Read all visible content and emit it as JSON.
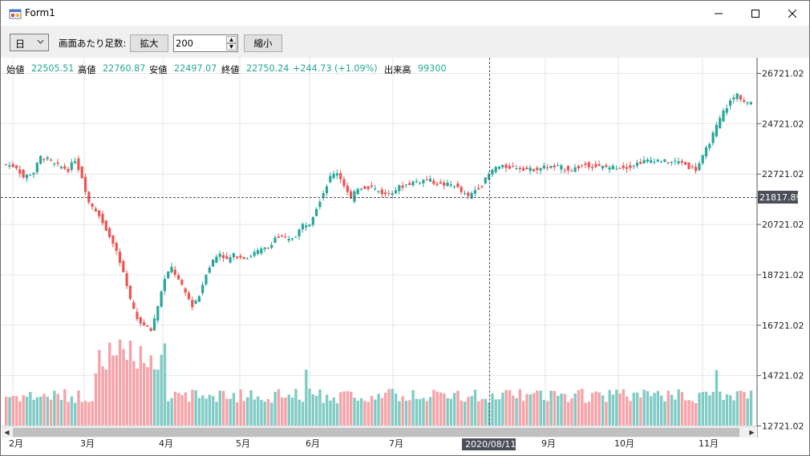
{
  "window": {
    "title": "Form1"
  },
  "toolbar": {
    "period_selected": "日",
    "bars_label": "画面あたり足数:",
    "zoom_in_label": "拡大",
    "bars_value": "200",
    "zoom_out_label": "縮小"
  },
  "ohlc": {
    "open_label": "始値",
    "open_value": "22505.51",
    "high_label": "高値",
    "high_value": "22760.87",
    "low_label": "安値",
    "low_value": "22497.07",
    "close_label": "終値",
    "close_value": "22750.24",
    "change_value": "+244.73",
    "change_pct": "(+1.09%)",
    "volume_label": "出来高",
    "volume_value": "99300"
  },
  "colors": {
    "up": "#26a69a",
    "down": "#ef5350",
    "up_vol": "#80cbc4",
    "down_vol": "#f5a3a8",
    "grid": "#e3e6ee",
    "label_bg": "#4a4f5a"
  },
  "chart_data": {
    "type": "candlestick",
    "y_ticks": [
      "26721.02",
      "24721.02",
      "22721.02",
      "20721.02",
      "18721.02",
      "16721.02",
      "14721.02",
      "12721.02"
    ],
    "y_range": [
      12721.02,
      26721.02
    ],
    "x_month_labels": [
      "2月",
      "3月",
      "4月",
      "5月",
      "6月",
      "7月",
      "9月",
      "10月",
      "11月"
    ],
    "crosshair": {
      "price_label": "21817.89",
      "date_label": "2020/08/11"
    },
    "path": [
      [
        0,
        23100
      ],
      [
        3,
        23000
      ],
      [
        5,
        22600
      ],
      [
        8,
        22800
      ],
      [
        10,
        23400
      ],
      [
        12,
        23300
      ],
      [
        14,
        23100
      ],
      [
        16,
        23000
      ],
      [
        18,
        22900
      ],
      [
        20,
        23300
      ],
      [
        22,
        22600
      ],
      [
        24,
        21600
      ],
      [
        26,
        21300
      ],
      [
        28,
        20800
      ],
      [
        30,
        20300
      ],
      [
        32,
        19600
      ],
      [
        34,
        18800
      ],
      [
        36,
        17700
      ],
      [
        38,
        17000
      ],
      [
        40,
        16700
      ],
      [
        42,
        16500
      ],
      [
        44,
        17500
      ],
      [
        46,
        18600
      ],
      [
        48,
        19000
      ],
      [
        50,
        18500
      ],
      [
        52,
        18000
      ],
      [
        54,
        17500
      ],
      [
        56,
        17900
      ],
      [
        58,
        18800
      ],
      [
        60,
        19300
      ],
      [
        62,
        19600
      ],
      [
        64,
        19300
      ],
      [
        66,
        19500
      ],
      [
        70,
        19400
      ],
      [
        72,
        19600
      ],
      [
        74,
        19700
      ],
      [
        76,
        19800
      ],
      [
        78,
        20200
      ],
      [
        80,
        20200
      ],
      [
        82,
        20100
      ],
      [
        84,
        20300
      ],
      [
        86,
        20700
      ],
      [
        88,
        20800
      ],
      [
        90,
        21400
      ],
      [
        92,
        22000
      ],
      [
        94,
        22600
      ],
      [
        96,
        22800
      ],
      [
        98,
        22300
      ],
      [
        100,
        21700
      ],
      [
        102,
        22200
      ],
      [
        106,
        22200
      ],
      [
        110,
        21900
      ],
      [
        114,
        22200
      ],
      [
        118,
        22400
      ],
      [
        122,
        22500
      ],
      [
        126,
        22300
      ],
      [
        130,
        22300
      ],
      [
        132,
        22000
      ],
      [
        134,
        21800
      ],
      [
        136,
        22100
      ],
      [
        138,
        22300
      ],
      [
        140,
        22700
      ],
      [
        142,
        23000
      ],
      [
        144,
        23000
      ],
      [
        148,
        23000
      ],
      [
        152,
        22900
      ],
      [
        156,
        23000
      ],
      [
        160,
        23000
      ],
      [
        164,
        22900
      ],
      [
        168,
        23100
      ],
      [
        172,
        23000
      ],
      [
        176,
        23000
      ],
      [
        180,
        23000
      ],
      [
        184,
        23200
      ],
      [
        188,
        23300
      ],
      [
        192,
        23200
      ],
      [
        196,
        23200
      ],
      [
        198,
        23000
      ],
      [
        200,
        22900
      ],
      [
        202,
        23400
      ],
      [
        204,
        24000
      ],
      [
        206,
        24600
      ],
      [
        208,
        25200
      ],
      [
        210,
        25600
      ],
      [
        212,
        25900
      ],
      [
        214,
        25600
      ],
      [
        216,
        25500
      ]
    ]
  }
}
